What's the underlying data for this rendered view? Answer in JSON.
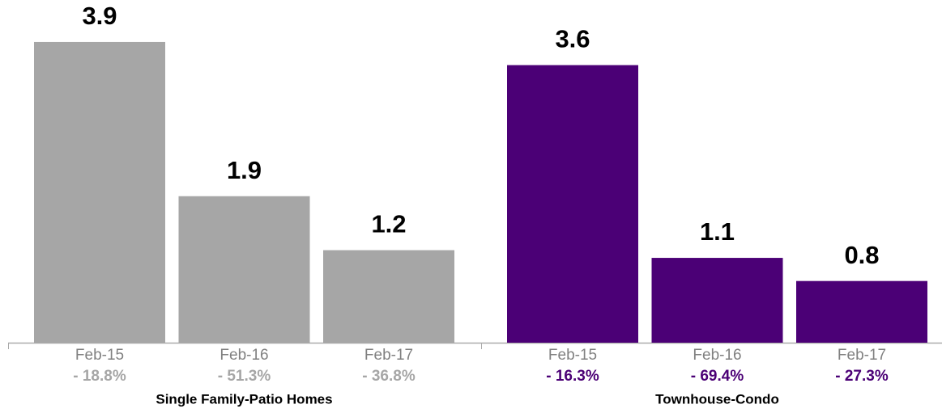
{
  "chart_data": [
    {
      "type": "bar",
      "title": "Single Family-Patio Homes",
      "categories": [
        "Feb-15",
        "Feb-16",
        "Feb-17"
      ],
      "values": [
        3.9,
        1.9,
        1.2
      ],
      "annotations": [
        "- 18.8%",
        "- 51.3%",
        "- 36.8%"
      ],
      "color": "#a6a6a6"
    },
    {
      "type": "bar",
      "title": "Townhouse-Condo",
      "categories": [
        "Feb-15",
        "Feb-16",
        "Feb-17"
      ],
      "values": [
        3.6,
        1.1,
        0.8
      ],
      "annotations": [
        "- 16.3%",
        "- 69.4%",
        "- 27.3%"
      ],
      "color": "#4b0076"
    }
  ]
}
